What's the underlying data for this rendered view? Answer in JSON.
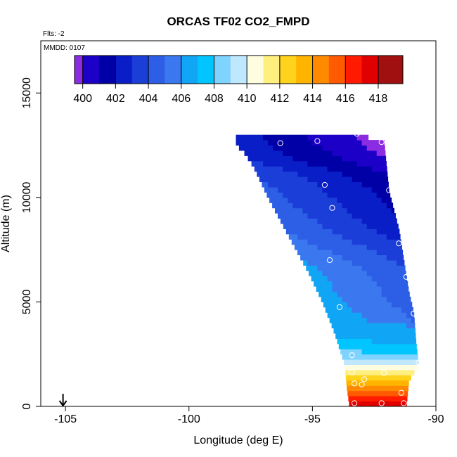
{
  "chart_data": {
    "type": "heatmap",
    "title": "ORCAS TF02 CO2_FMPD",
    "flights_label": "Flts: -2",
    "date_label": "MMDD: 0107",
    "xlabel": "Longitude (deg E)",
    "ylabel": "Altitude (m)",
    "xlim": [
      -106,
      -90
    ],
    "ylim": [
      0,
      17500
    ],
    "x_ticks": [
      -105,
      -100,
      -95,
      -90
    ],
    "x_tick_labels": [
      "-105",
      "-100",
      "-95",
      "-90"
    ],
    "y_ticks": [
      0,
      5000,
      10000,
      15000
    ],
    "y_tick_labels": [
      "0",
      "5000",
      "10000",
      "15000"
    ],
    "colorbar": {
      "breaks": [
        399.5,
        400,
        401,
        402,
        403,
        404,
        405,
        406,
        407,
        408,
        409,
        410,
        411,
        412,
        413,
        414,
        415,
        416,
        417,
        418,
        419.5
      ],
      "colors": [
        "#8b2be2",
        "#1d00c8",
        "#0000a6",
        "#0a1ec8",
        "#1c3ed8",
        "#2d5fe6",
        "#3b78f0",
        "#11a6f5",
        "#00c5ff",
        "#7fd3ff",
        "#bfe8ff",
        "#fffde0",
        "#ffef7f",
        "#ffd21c",
        "#ffb400",
        "#ff8a00",
        "#ff5a00",
        "#ff1a00",
        "#e00000",
        "#a01010"
      ],
      "tick_values": [
        400,
        402,
        404,
        406,
        408,
        410,
        412,
        414,
        416,
        418
      ],
      "tick_labels": [
        "400",
        "402",
        "404",
        "406",
        "408",
        "410",
        "412",
        "414",
        "416",
        "418"
      ]
    },
    "marker": {
      "longitude": -105.1,
      "altitude": 600,
      "type": "arrow-down"
    },
    "domain_edges": {
      "left": [
        [
          12500,
          -98.1
        ],
        [
          12200,
          -97.8
        ],
        [
          11500,
          -97.4
        ],
        [
          10000,
          -96.8
        ],
        [
          8000,
          -95.9
        ],
        [
          6500,
          -95.2
        ],
        [
          5000,
          -94.6
        ],
        [
          3500,
          -94.1
        ],
        [
          2000,
          -93.7
        ],
        [
          800,
          -93.6
        ],
        [
          0,
          -93.5
        ]
      ],
      "right": [
        [
          13000,
          -93.2
        ],
        [
          12700,
          -92.1
        ],
        [
          11500,
          -92.0
        ],
        [
          10300,
          -91.9
        ],
        [
          8500,
          -91.5
        ],
        [
          7000,
          -91.3
        ],
        [
          5500,
          -91.1
        ],
        [
          4500,
          -90.9
        ],
        [
          3000,
          -90.8
        ],
        [
          2000,
          -90.7
        ],
        [
          1200,
          -91.1
        ],
        [
          0,
          -91.2
        ]
      ]
    },
    "profile": [
      [
        0,
        418
      ],
      [
        500,
        416.5
      ],
      [
        900,
        414.5
      ],
      [
        1300,
        413
      ],
      [
        1700,
        411.3
      ],
      [
        2000,
        410.2
      ],
      [
        2400,
        408.5
      ],
      [
        3000,
        407.2
      ],
      [
        3800,
        406.3
      ],
      [
        5000,
        405.6
      ],
      [
        6500,
        405.1
      ],
      [
        7500,
        404.2
      ],
      [
        8500,
        403.2
      ],
      [
        9500,
        402.6
      ],
      [
        10500,
        402.1
      ],
      [
        11200,
        401.5
      ],
      [
        11800,
        400.6
      ],
      [
        12500,
        400
      ],
      [
        13200,
        399.7
      ]
    ],
    "sample_points": [
      {
        "lon": -93.2,
        "alt": 13050
      },
      {
        "lon": -96.3,
        "alt": 12600
      },
      {
        "lon": -94.8,
        "alt": 12700
      },
      {
        "lon": -92.2,
        "alt": 12650
      },
      {
        "lon": -94.5,
        "alt": 10600
      },
      {
        "lon": -91.9,
        "alt": 10350
      },
      {
        "lon": -94.2,
        "alt": 9500
      },
      {
        "lon": -91.5,
        "alt": 7800
      },
      {
        "lon": -94.3,
        "alt": 7000
      },
      {
        "lon": -91.2,
        "alt": 6200
      },
      {
        "lon": -93.9,
        "alt": 4750
      },
      {
        "lon": -90.9,
        "alt": 4450
      },
      {
        "lon": -93.4,
        "alt": 2450
      },
      {
        "lon": -90.7,
        "alt": 2100
      },
      {
        "lon": -93.4,
        "alt": 1650
      },
      {
        "lon": -92.1,
        "alt": 1600
      },
      {
        "lon": -92.9,
        "alt": 1300
      },
      {
        "lon": -93.3,
        "alt": 1100
      },
      {
        "lon": -93.0,
        "alt": 1050
      },
      {
        "lon": -91.4,
        "alt": 650
      },
      {
        "lon": -93.3,
        "alt": 150
      },
      {
        "lon": -92.2,
        "alt": 150
      },
      {
        "lon": -91.3,
        "alt": 150
      }
    ]
  }
}
